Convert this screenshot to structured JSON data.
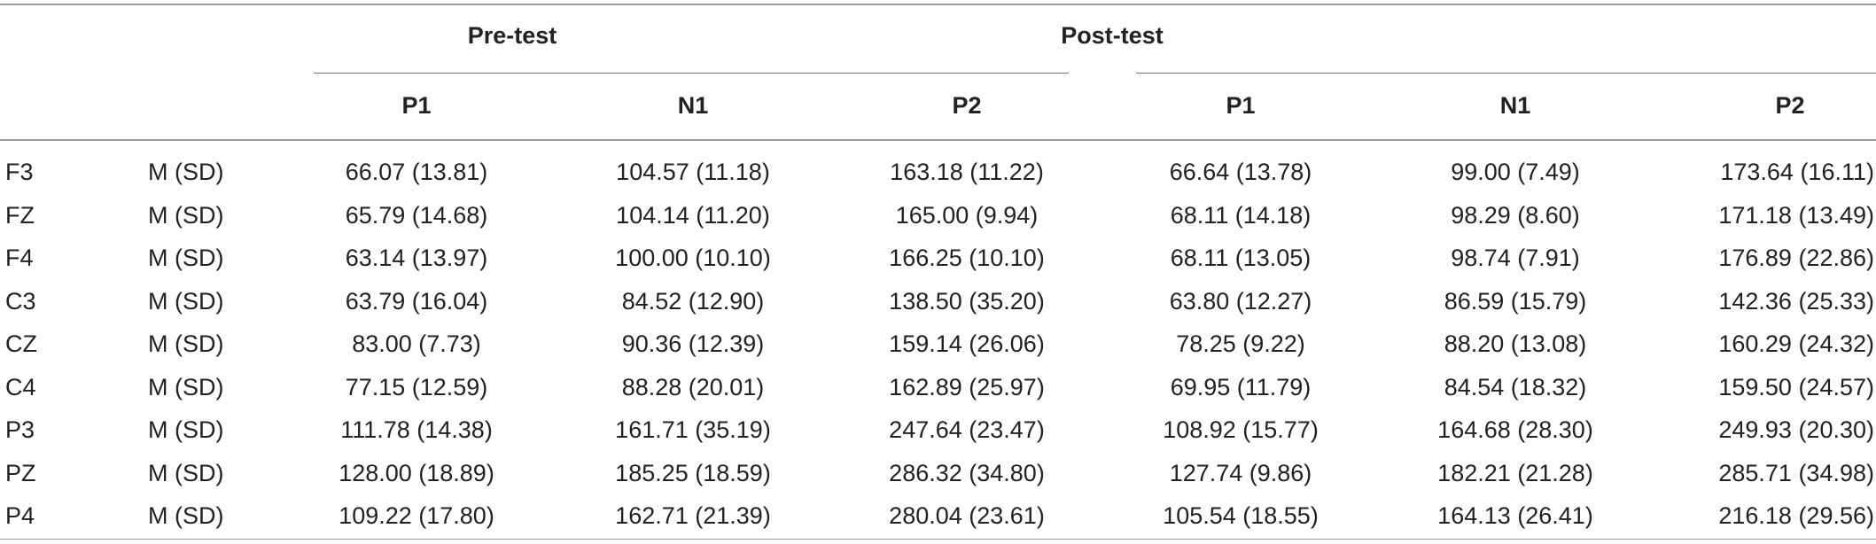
{
  "table": {
    "groups": [
      {
        "label": "Pre-test"
      },
      {
        "label": "Post-test"
      }
    ],
    "columns": [
      "P1",
      "N1",
      "P2",
      "P1",
      "N1",
      "P2"
    ],
    "rows": [
      {
        "electrode": "F3",
        "stat": "M (SD)",
        "values": [
          "66.07 (13.81)",
          "104.57 (11.18)",
          "163.18 (11.22)",
          "66.64 (13.78)",
          "99.00 (7.49)",
          "173.64 (16.11)"
        ]
      },
      {
        "electrode": "FZ",
        "stat": "M (SD)",
        "values": [
          "65.79 (14.68)",
          "104.14 (11.20)",
          "165.00 (9.94)",
          "68.11 (14.18)",
          "98.29 (8.60)",
          "171.18 (13.49)"
        ]
      },
      {
        "electrode": "F4",
        "stat": "M (SD)",
        "values": [
          "63.14 (13.97)",
          "100.00 (10.10)",
          "166.25 (10.10)",
          "68.11 (13.05)",
          "98.74 (7.91)",
          "176.89 (22.86)"
        ]
      },
      {
        "electrode": "C3",
        "stat": "M (SD)",
        "values": [
          "63.79 (16.04)",
          "84.52 (12.90)",
          "138.50 (35.20)",
          "63.80 (12.27)",
          "86.59 (15.79)",
          "142.36 (25.33)"
        ]
      },
      {
        "electrode": "CZ",
        "stat": "M (SD)",
        "values": [
          "83.00 (7.73)",
          "90.36 (12.39)",
          "159.14 (26.06)",
          "78.25 (9.22)",
          "88.20 (13.08)",
          "160.29 (24.32)"
        ]
      },
      {
        "electrode": "C4",
        "stat": "M (SD)",
        "values": [
          "77.15 (12.59)",
          "88.28 (20.01)",
          "162.89 (25.97)",
          "69.95 (11.79)",
          "84.54 (18.32)",
          "159.50 (24.57)"
        ]
      },
      {
        "electrode": "P3",
        "stat": "M (SD)",
        "values": [
          "111.78 (14.38)",
          "161.71 (35.19)",
          "247.64 (23.47)",
          "108.92 (15.77)",
          "164.68 (28.30)",
          "249.93 (20.30)"
        ]
      },
      {
        "electrode": "PZ",
        "stat": "M (SD)",
        "values": [
          "128.00 (18.89)",
          "185.25 (18.59)",
          "286.32 (34.80)",
          "127.74 (9.86)",
          "182.21 (21.28)",
          "285.71 (34.98)"
        ]
      },
      {
        "electrode": "P4",
        "stat": "M (SD)",
        "values": [
          "109.22 (17.80)",
          "162.71 (21.39)",
          "280.04 (23.61)",
          "105.54 (18.55)",
          "164.13 (26.41)",
          "216.18 (29.56)"
        ]
      }
    ]
  }
}
